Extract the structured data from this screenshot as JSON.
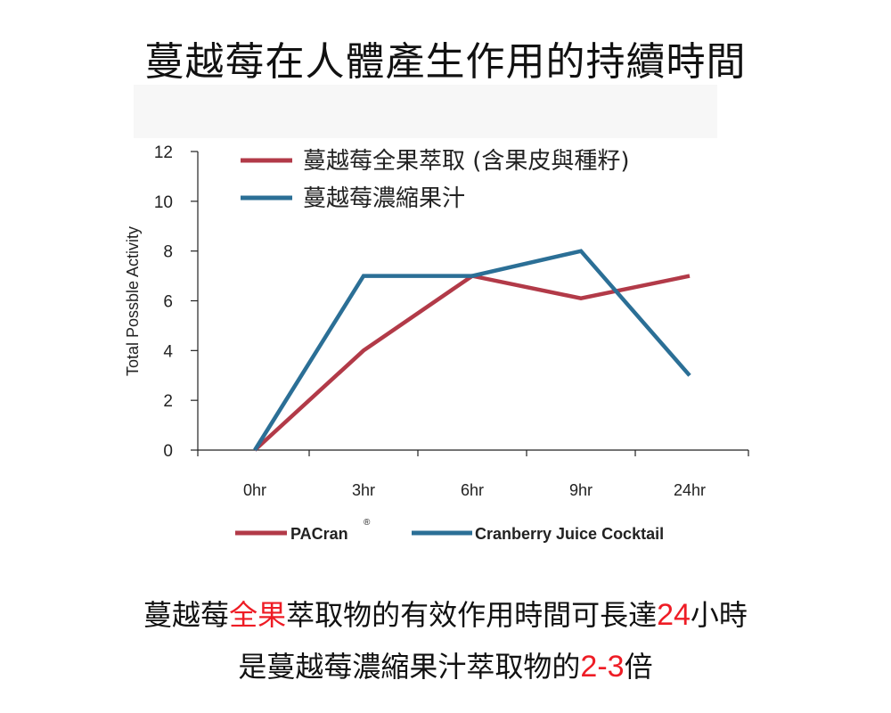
{
  "title": "蔓越莓在人體產生作用的持續時間",
  "chart_data": {
    "type": "line",
    "ylabel": "Total Possble Activity",
    "xlabel": "",
    "categories": [
      "0hr",
      "3hr",
      "6hr",
      "9hr",
      "24hr"
    ],
    "ylim": [
      0,
      12
    ],
    "yticks": [
      "0",
      "2",
      "4",
      "6",
      "8",
      "10",
      "12"
    ],
    "grid": false,
    "series": [
      {
        "name": "PACran",
        "name_mark": "®",
        "label_zh": "蔓越莓全果萃取 (含果皮與種籽)",
        "color": "#b23a48",
        "values": [
          0,
          4,
          7,
          6.1,
          7
        ]
      },
      {
        "name": "Cranberry Juice Cocktail",
        "label_zh": "蔓越莓濃縮果汁",
        "color": "#2b6f96",
        "values": [
          0,
          7,
          7,
          8,
          3
        ]
      }
    ]
  },
  "notes": {
    "line1": {
      "part1": "蔓越莓",
      "highlight1": "全果",
      "part2": "萃取物的有效作用時間可長達",
      "highlight2": "24",
      "part3": "小時"
    },
    "line2": {
      "part1": "是蔓越莓濃縮果汁萃取物的",
      "highlight1": "2",
      "sep": "-",
      "highlight2": "3",
      "part2": "倍"
    },
    "highlight_color": "#ee1c25"
  }
}
